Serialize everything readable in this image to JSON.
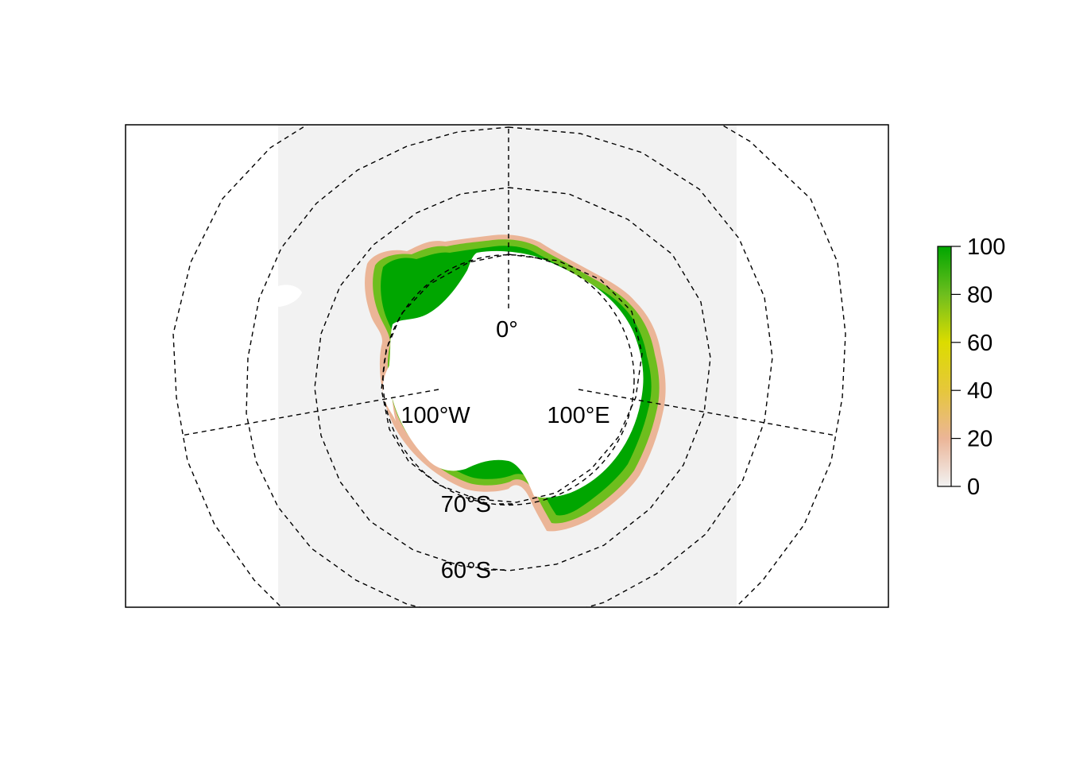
{
  "map": {
    "projection": "south-polar-stereographic",
    "background_panel_color": "#f2f2f2",
    "land_color": "#ffffff",
    "graticule": {
      "style": "dashed",
      "latitudes": [
        {
          "lat": -80,
          "label": ""
        },
        {
          "lat": -70,
          "label": "70°S"
        },
        {
          "lat": -60,
          "label": "60°S"
        },
        {
          "lat": -50,
          "label": ""
        },
        {
          "lat": -40,
          "label": ""
        }
      ],
      "meridians": [
        {
          "lon": 0,
          "label": "0°"
        },
        {
          "lon": -100,
          "label": "100°W"
        },
        {
          "lon": 100,
          "label": "100°E"
        }
      ]
    }
  },
  "legend": {
    "ticks": [
      {
        "value": 0,
        "label": "0"
      },
      {
        "value": 20,
        "label": "20"
      },
      {
        "value": 40,
        "label": "40"
      },
      {
        "value": 60,
        "label": "60"
      },
      {
        "value": 80,
        "label": "80"
      },
      {
        "value": 100,
        "label": "100"
      }
    ],
    "range": [
      0,
      100
    ],
    "colors": [
      "#f2f2f2",
      "#ebb597",
      "#e6c73b",
      "#dcdc00",
      "#6ebe1e",
      "#00a600"
    ]
  }
}
